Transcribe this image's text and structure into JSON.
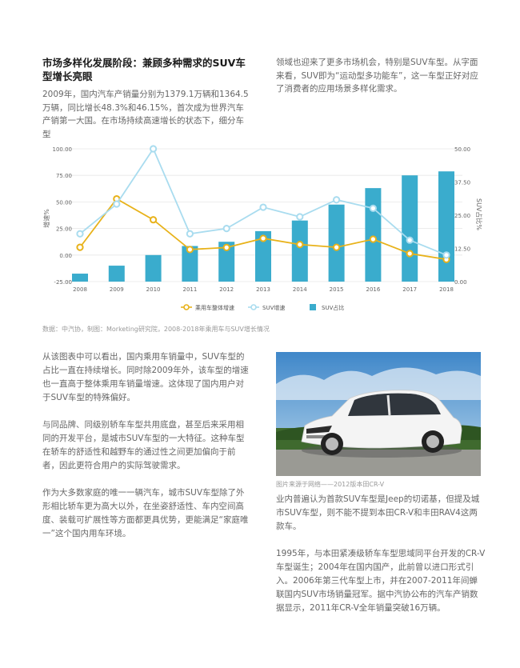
{
  "heading": "市场多样化发展阶段：兼顾多种需求的SUV车型增长亮眼",
  "intro_left": "2009年，国内汽车产销量分别为1379.1万辆和1364.5万辆，同比增长48.3%和46.15%，首次成为世界汽车产销第一大国。在市场持续高速增长的状态下，细分车型",
  "intro_right": "领域也迎来了更多市场机会，特别是SUV车型。从字面来看，SUV即为“运动型多功能车”，这一车型正好对应了消费者的应用场景多样化需求。",
  "chart_data": {
    "type": "bar",
    "categories": [
      "2008",
      "2009",
      "2010",
      "2011",
      "2012",
      "2013",
      "2014",
      "2015",
      "2016",
      "2017",
      "2018"
    ],
    "y_left_label": "增速%",
    "y_right_label": "SUV占比%",
    "y_left_ticks": [
      "100.00",
      "75.00",
      "50.00",
      "25.00",
      "0.00",
      "-25.00"
    ],
    "y_right_ticks": [
      "50.00",
      "37.50",
      "25.00",
      "12.50",
      "0.00"
    ],
    "ylim_left": [
      -25,
      100
    ],
    "ylim_right": [
      0,
      50
    ],
    "series": [
      {
        "name": "乘用车整体增速",
        "type": "line",
        "axis": "left",
        "color": "#e8b21a",
        "values": [
          7.3,
          52.9,
          33.2,
          5.2,
          7.1,
          15.7,
          9.9,
          7.3,
          14.9,
          1.4,
          -4.1
        ]
      },
      {
        "name": "SUV增速",
        "type": "line",
        "axis": "left",
        "color": "#a9dcef",
        "values": [
          20,
          48,
          100,
          20,
          25,
          45,
          36,
          52,
          44,
          14,
          0
        ]
      },
      {
        "name": "SUV占比",
        "type": "bar",
        "axis": "right",
        "color": "#3aaccd",
        "values": [
          3,
          6,
          10,
          13.4,
          15,
          19,
          23,
          29,
          35.2,
          40,
          41.5
        ]
      }
    ],
    "legend_position": "bottom"
  },
  "chart_caption": "数据：中汽协，制图：Morketing研究院，2008-2018年乘用车与SUV增长情况",
  "body_left": [
    "从该图表中可以看出，国内乘用车销量中，SUV车型的占比一直在持续增长。同时除2009年外，该车型的增速也一直高于整体乘用车销量增速。这体现了国内用户对于SUV车型的特殊偏好。",
    "与同品牌、同级别轿车车型共用底盘，甚至后来采用相同的开发平台，是城市SUV车型的一大特征。这种车型在轿车的舒适性和越野车的通过性之间更加偏向于前者，因此更符合用户的实际驾驶需求。",
    "作为大多数家庭的唯一一辆汽车，城市SUV车型除了外形相比轿车更为高大以外，在坐姿舒适性、车内空间高度、装载可扩展性等方面都更具优势，更能满足“家庭唯一”这个国内用车环境。"
  ],
  "photo_caption": "图片来源于网络——2012版本田CR-V",
  "body_right": [
    "业内普遍认为首款SUV车型是Jeep的切诺基，但提及城市SUV车型，则不能不提到本田CR-V和丰田RAV4这两款车。",
    "1995年，与本田紧凑级轿车车型思域同平台开发的CR-V车型诞生；2004年在国内国产，此前曾以进口形式引入。2006年第三代车型上市，并在2007-2011年间蝉联国内SUV市场销量冠军。据中汽协公布的汽车产销数据显示，2011年CR-V全年销量突破16万辆。"
  ]
}
